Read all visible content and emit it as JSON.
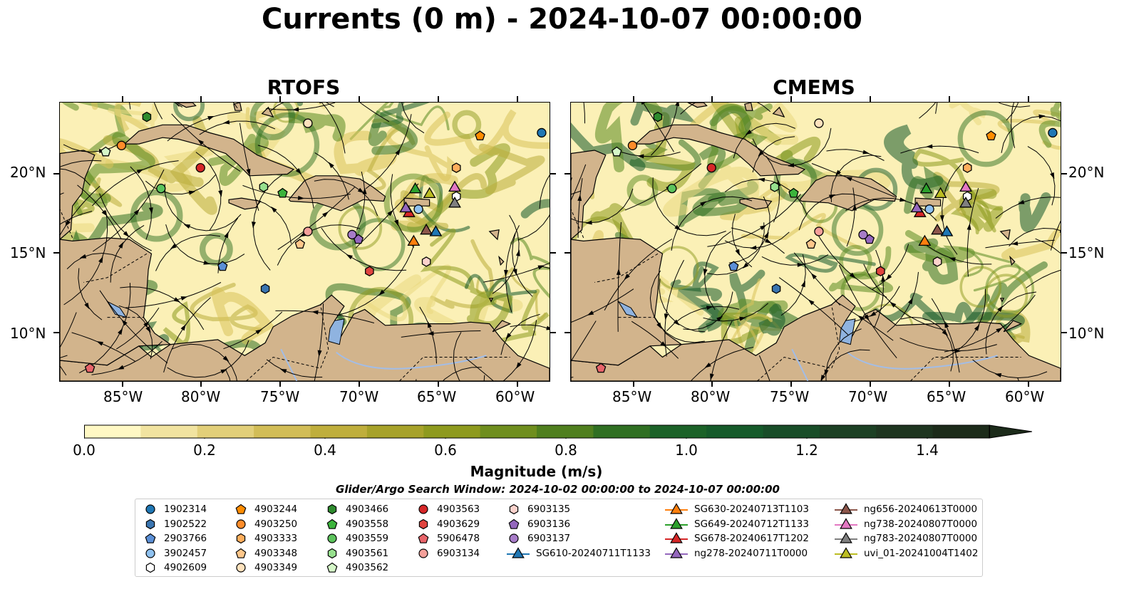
{
  "title": "Currents (0 m) - 2024-10-07 00:00:00",
  "panels": [
    {
      "title": "RTOFS"
    },
    {
      "title": "CMEMS"
    }
  ],
  "x_ticks": [
    "85°W",
    "80°W",
    "75°W",
    "70°W",
    "65°W",
    "60°W"
  ],
  "y_ticks": [
    "20°N",
    "15°N",
    "10°N"
  ],
  "colorbar": {
    "label": "Magnitude (m/s)",
    "ticks": [
      "0.0",
      "0.2",
      "0.4",
      "0.6",
      "0.8",
      "1.0",
      "1.2",
      "1.4"
    ],
    "colors": [
      "#fff8c4",
      "#f1e3a0",
      "#e2cf79",
      "#d2bd57",
      "#bfae3c",
      "#a7a22a",
      "#8e9a1e",
      "#6f8e1e",
      "#4f7f1e",
      "#2f6f22",
      "#1b6228",
      "#155a2a",
      "#184d28",
      "#1c4024",
      "#1e3520",
      "#1c2b1a"
    ]
  },
  "search_window": "Glider/Argo Search Window: 2024-10-02 00:00:00 to 2024-10-07 00:00:00",
  "colors": {
    "land": "#d2b48c",
    "lake": "#8fb3e0",
    "ocean_light": "#fbf0b6",
    "current_green": "#3f8a2a",
    "current_dark": "#145a2a"
  },
  "legend": [
    {
      "label": "1902314",
      "marker": "circle",
      "color": "#1f77b4"
    },
    {
      "label": "1902522",
      "marker": "hexagon",
      "color": "#3a75b0"
    },
    {
      "label": "2903766",
      "marker": "pentagon",
      "color": "#5b8fd6"
    },
    {
      "label": "3902457",
      "marker": "circle",
      "color": "#8fc1ef"
    },
    {
      "label": "4902609",
      "marker": "hexagon-open",
      "color": "#ffffff"
    },
    {
      "label": "4903244",
      "marker": "pentagon",
      "color": "#ff8c00"
    },
    {
      "label": "4903250",
      "marker": "circle",
      "color": "#ff8c2a"
    },
    {
      "label": "4903333",
      "marker": "hexagon",
      "color": "#ffae5c"
    },
    {
      "label": "4903348",
      "marker": "pentagon",
      "color": "#ffc78a"
    },
    {
      "label": "4903349",
      "marker": "circle",
      "color": "#ffe2bd"
    },
    {
      "label": "4903466",
      "marker": "hexagon",
      "color": "#2e8b2e"
    },
    {
      "label": "4903558",
      "marker": "pentagon",
      "color": "#3cb43c"
    },
    {
      "label": "4903559",
      "marker": "circle",
      "color": "#5cc35c"
    },
    {
      "label": "4903561",
      "marker": "hexagon",
      "color": "#97e08e"
    },
    {
      "label": "4903562",
      "marker": "pentagon",
      "color": "#d5f7c8"
    },
    {
      "label": "4903563",
      "marker": "circle",
      "color": "#d62728"
    },
    {
      "label": "4903629",
      "marker": "hexagon",
      "color": "#e0443f"
    },
    {
      "label": "5906478",
      "marker": "pentagon",
      "color": "#e8646a"
    },
    {
      "label": "6903134",
      "marker": "circle",
      "color": "#f4a09a"
    },
    {
      "label": "6903135",
      "marker": "hexagon",
      "color": "#fcd2cc"
    },
    {
      "label": "6903136",
      "marker": "pentagon",
      "color": "#9467bd"
    },
    {
      "label": "6903137",
      "marker": "circle",
      "color": "#a77cc8"
    },
    {
      "label": "SG610-20240711T1133",
      "marker": "triangle-line",
      "color": "#1f77b4"
    },
    {
      "label": "SG630-20240713T1103",
      "marker": "triangle-line",
      "color": "#ff7f0e"
    },
    {
      "label": "SG649-20240712T1133",
      "marker": "triangle-line",
      "color": "#2ca02c"
    },
    {
      "label": "SG678-20240617T1202",
      "marker": "triangle-line",
      "color": "#d62728"
    },
    {
      "label": "ng278-20240711T0000",
      "marker": "triangle-line",
      "color": "#9467bd"
    },
    {
      "label": "ng656-20240613T0000",
      "marker": "triangle-line",
      "color": "#8c564b"
    },
    {
      "label": "ng738-20240807T0000",
      "marker": "triangle-line",
      "color": "#e377c2"
    },
    {
      "label": "ng783-20240807T0000",
      "marker": "triangle-line",
      "color": "#7f7f7f"
    },
    {
      "label": "uvi_01-20241004T1402",
      "marker": "triangle-line",
      "color": "#bcbd22"
    }
  ],
  "floats": [
    {
      "id": "1902314",
      "lon": -58.5,
      "lat": 22.6
    },
    {
      "id": "1902522",
      "lon": -76.0,
      "lat": 12.8
    },
    {
      "id": "2903766",
      "lon": -78.7,
      "lat": 14.2
    },
    {
      "id": "3902457",
      "lon": -66.3,
      "lat": 17.8
    },
    {
      "id": "4902609",
      "lon": -63.9,
      "lat": 18.6
    },
    {
      "id": "4903244",
      "lon": -62.4,
      "lat": 22.4
    },
    {
      "id": "4903250",
      "lon": -85.1,
      "lat": 21.8
    },
    {
      "id": "4903333",
      "lon": -63.9,
      "lat": 20.4
    },
    {
      "id": "4903348",
      "lon": -73.8,
      "lat": 15.6
    },
    {
      "id": "4903349",
      "lon": -73.3,
      "lat": 23.2
    },
    {
      "id": "4903466",
      "lon": -83.5,
      "lat": 23.6
    },
    {
      "id": "4903558",
      "lon": -74.9,
      "lat": 18.8
    },
    {
      "id": "4903559",
      "lon": -82.6,
      "lat": 19.1
    },
    {
      "id": "4903561",
      "lon": -76.1,
      "lat": 19.2
    },
    {
      "id": "4903562",
      "lon": -86.1,
      "lat": 21.4
    },
    {
      "id": "4903563",
      "lon": -80.1,
      "lat": 20.4
    },
    {
      "id": "4903629",
      "lon": -69.4,
      "lat": 13.9
    },
    {
      "id": "5906478",
      "lon": -87.1,
      "lat": 7.8
    },
    {
      "id": "6903134",
      "lon": -73.3,
      "lat": 16.4
    },
    {
      "id": "6903135",
      "lon": -65.8,
      "lat": 14.5
    },
    {
      "id": "6903136",
      "lon": -70.1,
      "lat": 15.9
    },
    {
      "id": "6903137",
      "lon": -70.5,
      "lat": 16.2
    }
  ],
  "gliders": [
    {
      "id": "SG610-20240711T1133",
      "lon": -65.2,
      "lat": 16.4
    },
    {
      "id": "SG630-20240713T1103",
      "lon": -66.6,
      "lat": 15.8
    },
    {
      "id": "SG649-20240712T1133",
      "lon": -66.5,
      "lat": 19.1
    },
    {
      "id": "SG678-20240617T1202",
      "lon": -66.9,
      "lat": 17.6
    },
    {
      "id": "ng278-20240711T0000",
      "lon": -67.1,
      "lat": 17.9
    },
    {
      "id": "ng656-20240613T0000",
      "lon": -65.8,
      "lat": 16.5
    },
    {
      "id": "ng738-20240807T0000",
      "lon": -64.0,
      "lat": 19.2
    },
    {
      "id": "ng783-20240807T0000",
      "lon": -64.0,
      "lat": 18.2
    },
    {
      "id": "uvi_01-20241004T1402",
      "lon": -65.6,
      "lat": 18.8
    }
  ],
  "map_extent": {
    "lon": [
      -89,
      -58
    ],
    "lat": [
      7,
      24.5
    ]
  }
}
